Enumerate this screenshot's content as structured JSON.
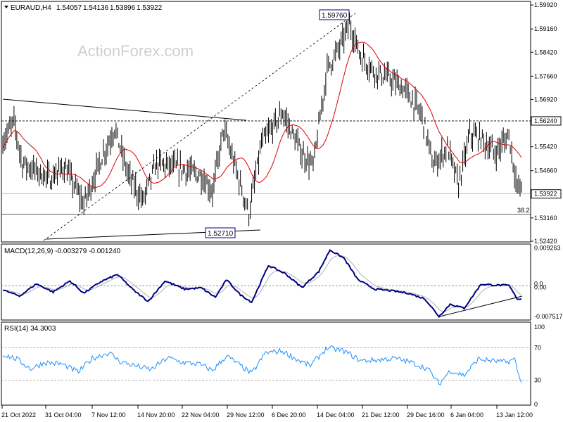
{
  "chart_data": [
    {
      "type": "candlestick",
      "panel": "price",
      "header": {
        "symbol": "EURAUD,H4",
        "open": "1.54057",
        "high": "1.54136",
        "low": "1.53896",
        "close": "1.53922"
      },
      "watermark": "ActionForex.com",
      "ylim": [
        1.5242,
        1.5999
      ],
      "y_ticks": [
        "1.59920",
        "1.59160",
        "1.58420",
        "1.57660",
        "1.56920",
        "1.56240",
        "1.55420",
        "1.54660",
        "1.53922",
        "1.53160",
        "1.52420"
      ],
      "price_badges": [
        "1.56240",
        "1.53922"
      ],
      "annotations": [
        {
          "label": "1.59760",
          "value": 1.5976
        },
        {
          "label": "1.52710",
          "value": 1.5271
        }
      ],
      "fib_label": "38.2",
      "fib_level": 1.5328,
      "dotted_level": 1.5624,
      "current_level": 1.53922,
      "moving_average_color": "#e00000",
      "bar_color": "#000000"
    },
    {
      "type": "line",
      "panel": "macd",
      "title": "MACD(12,26,9) -0.003279 -0.001240",
      "ylim": [
        -0.0082,
        0.0099
      ],
      "y_ticks": [
        "0.009263",
        "0.0",
        "0.00",
        "-0.007517"
      ],
      "line_color": "#000080",
      "signal_color": "#b0b0b0"
    },
    {
      "type": "line",
      "panel": "rsi",
      "title": "RSI(14) 34.3003",
      "ylim": [
        0,
        100
      ],
      "y_ticks": [
        "100",
        "70",
        "30",
        "0"
      ],
      "levels": [
        70,
        30
      ],
      "line_color": "#1e90ff"
    }
  ],
  "x_labels": [
    "21 Oct 2022",
    "31 Oct 04:00",
    "7 Nov 12:00",
    "14 Nov 20:00",
    "22 Nov 04:00",
    "29 Nov 12:00",
    "6 Dec 20:00",
    "14 Dec 04:00",
    "21 Dec 12:00",
    "29 Dec 16:00",
    "6 Jan 04:00",
    "13 Jan 12:00"
  ],
  "price_anchors": [
    [
      0,
      1.556
    ],
    [
      8,
      1.562
    ],
    [
      14,
      1.549
    ],
    [
      22,
      1.547
    ],
    [
      34,
      1.544
    ],
    [
      44,
      1.548
    ],
    [
      58,
      1.536
    ],
    [
      70,
      1.55
    ],
    [
      80,
      1.56
    ],
    [
      90,
      1.545
    ],
    [
      100,
      1.537
    ],
    [
      110,
      1.549
    ],
    [
      120,
      1.548
    ],
    [
      130,
      1.547
    ],
    [
      142,
      1.545
    ],
    [
      150,
      1.54
    ],
    [
      158,
      1.56
    ],
    [
      168,
      1.545
    ],
    [
      176,
      1.533
    ],
    [
      185,
      1.555
    ],
    [
      200,
      1.565
    ],
    [
      214,
      1.552
    ],
    [
      222,
      1.548
    ],
    [
      232,
      1.579
    ],
    [
      240,
      1.585
    ],
    [
      248,
      1.593
    ],
    [
      256,
      1.583
    ],
    [
      266,
      1.578
    ],
    [
      276,
      1.576
    ],
    [
      288,
      1.572
    ],
    [
      300,
      1.564
    ],
    [
      308,
      1.548
    ],
    [
      318,
      1.554
    ],
    [
      326,
      1.542
    ],
    [
      334,
      1.558
    ],
    [
      342,
      1.557
    ],
    [
      352,
      1.552
    ],
    [
      362,
      1.558
    ],
    [
      368,
      1.541
    ]
  ],
  "macd_anchors": [
    [
      0,
      -0.001
    ],
    [
      12,
      -0.0025
    ],
    [
      24,
      0.0005
    ],
    [
      36,
      -0.0015
    ],
    [
      48,
      0.0012
    ],
    [
      58,
      -0.0018
    ],
    [
      70,
      0.001
    ],
    [
      82,
      0.0028
    ],
    [
      94,
      -0.0012
    ],
    [
      104,
      -0.0038
    ],
    [
      116,
      0.0012
    ],
    [
      130,
      -0.0008
    ],
    [
      142,
      -0.0005
    ],
    [
      152,
      -0.0028
    ],
    [
      160,
      0.0015
    ],
    [
      170,
      -0.0022
    ],
    [
      178,
      -0.004
    ],
    [
      190,
      0.005
    ],
    [
      202,
      0.003
    ],
    [
      214,
      -0.0004
    ],
    [
      226,
      0.0035
    ],
    [
      234,
      0.0088
    ],
    [
      244,
      0.0068
    ],
    [
      254,
      0.0015
    ],
    [
      266,
      -0.0008
    ],
    [
      278,
      -0.0012
    ],
    [
      290,
      -0.0018
    ],
    [
      302,
      -0.0032
    ],
    [
      312,
      -0.0075
    ],
    [
      320,
      -0.0045
    ],
    [
      330,
      -0.0055
    ],
    [
      342,
      0.0004
    ],
    [
      352,
      0.0002
    ],
    [
      362,
      0.0001
    ],
    [
      368,
      -0.0032
    ]
  ],
  "rsi_anchors": [
    [
      0,
      62
    ],
    [
      10,
      56
    ],
    [
      20,
      44
    ],
    [
      30,
      52
    ],
    [
      42,
      50
    ],
    [
      54,
      40
    ],
    [
      64,
      57
    ],
    [
      76,
      64
    ],
    [
      84,
      53
    ],
    [
      94,
      48
    ],
    [
      106,
      43
    ],
    [
      118,
      58
    ],
    [
      128,
      52
    ],
    [
      140,
      50
    ],
    [
      150,
      42
    ],
    [
      160,
      60
    ],
    [
      170,
      48
    ],
    [
      178,
      38
    ],
    [
      188,
      64
    ],
    [
      200,
      66
    ],
    [
      212,
      54
    ],
    [
      220,
      48
    ],
    [
      232,
      70
    ],
    [
      244,
      66
    ],
    [
      256,
      54
    ],
    [
      268,
      55
    ],
    [
      280,
      57
    ],
    [
      292,
      52
    ],
    [
      304,
      44
    ],
    [
      312,
      25
    ],
    [
      320,
      42
    ],
    [
      330,
      36
    ],
    [
      340,
      56
    ],
    [
      350,
      54
    ],
    [
      360,
      52
    ],
    [
      366,
      56
    ],
    [
      370,
      30
    ]
  ]
}
